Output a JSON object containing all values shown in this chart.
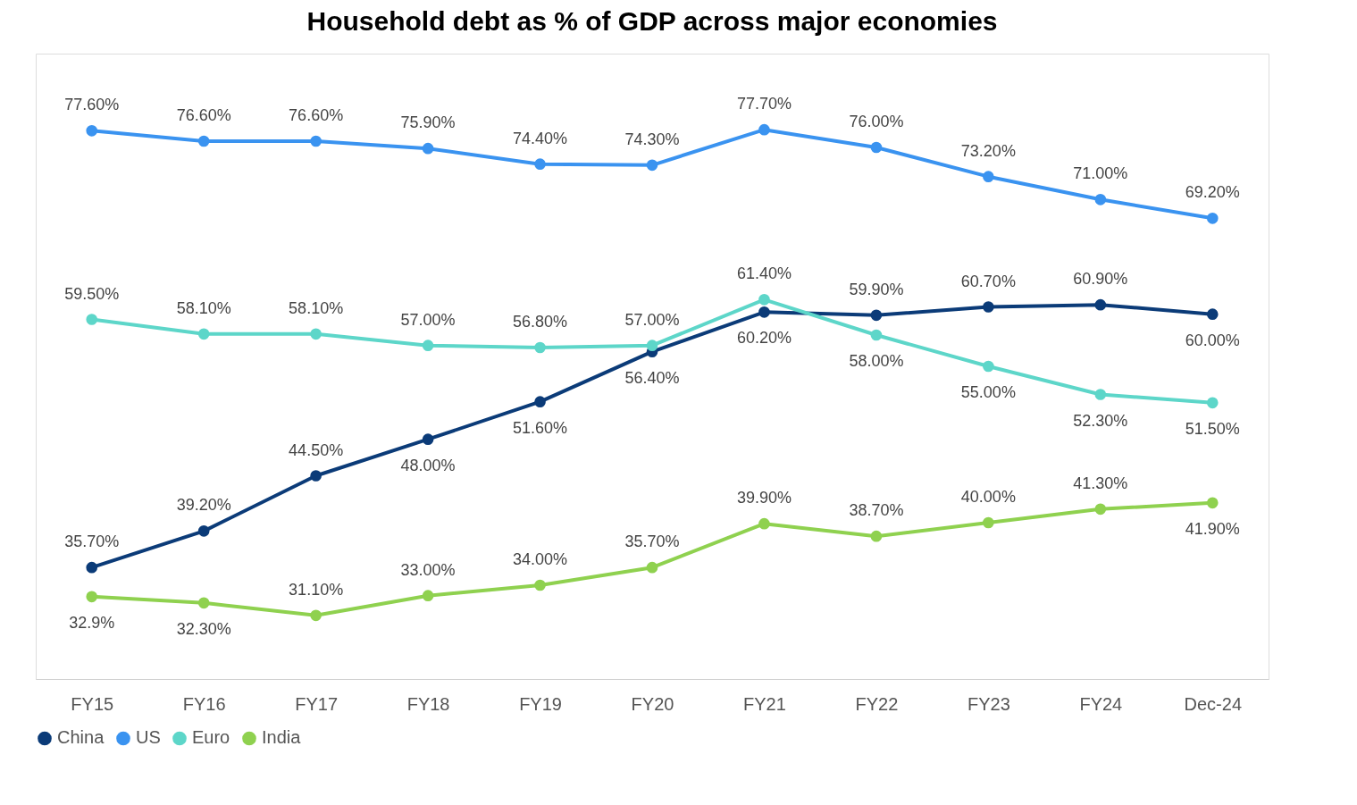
{
  "chart_data": {
    "type": "line",
    "title": "Household debt as % of GDP across major economies",
    "categories": [
      "FY15",
      "FY16",
      "FY17",
      "FY18",
      "FY19",
      "FY20",
      "FY21",
      "FY22",
      "FY23",
      "FY24",
      "Dec-24"
    ],
    "ylim": [
      25,
      85
    ],
    "tick_labels": "x",
    "grid": false,
    "legend": "bottom",
    "marker": "circle",
    "line_style": "solid",
    "series": [
      {
        "name": "China",
        "color": "#0b3b78",
        "values": [
          35.7,
          39.2,
          44.5,
          48.0,
          51.6,
          56.4,
          60.2,
          59.9,
          60.7,
          60.9,
          60.0
        ],
        "value_labels": [
          "35.70%",
          "39.20%",
          "44.50%",
          "48.00%",
          "51.60%",
          "56.40%",
          "60.20%",
          "59.90%",
          "60.70%",
          "60.90%",
          "60.00%"
        ]
      },
      {
        "name": "US",
        "color": "#3a93f0",
        "values": [
          77.6,
          76.6,
          76.6,
          75.9,
          74.4,
          74.3,
          77.7,
          76.0,
          73.2,
          71.0,
          69.2
        ],
        "value_labels": [
          "77.60%",
          "76.60%",
          "76.60%",
          "75.90%",
          "74.40%",
          "74.30%",
          "77.70%",
          "76.00%",
          "73.20%",
          "71.00%",
          "69.20%"
        ]
      },
      {
        "name": "Euro",
        "color": "#5dd6c9",
        "values": [
          59.5,
          58.1,
          58.1,
          57.0,
          56.8,
          57.0,
          61.4,
          58.0,
          55.0,
          52.3,
          51.5
        ],
        "value_labels": [
          "59.50%",
          "58.10%",
          "58.10%",
          "57.00%",
          "56.80%",
          "57.00%",
          "61.40%",
          "58.00%",
          "55.00%",
          "52.30%",
          "51.50%"
        ]
      },
      {
        "name": "India",
        "color": "#8fd14f",
        "values": [
          32.9,
          32.3,
          31.1,
          33.0,
          34.0,
          35.7,
          39.9,
          38.7,
          40.0,
          41.3,
          41.9
        ],
        "value_labels": [
          "32.9%",
          "32.30%",
          "31.10%",
          "33.00%",
          "34.00%",
          "35.70%",
          "39.90%",
          "38.70%",
          "40.00%",
          "41.30%",
          "41.90%"
        ]
      }
    ]
  }
}
